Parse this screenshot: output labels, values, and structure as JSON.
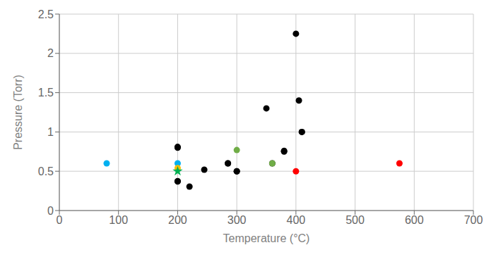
{
  "chart_data": {
    "type": "scatter",
    "xlabel": "Temperature (°C)",
    "ylabel": "Pressure (Torr)",
    "xlim": [
      0,
      700
    ],
    "ylim": [
      0,
      2.5
    ],
    "xticks": [
      0,
      100,
      200,
      300,
      400,
      500,
      600,
      700
    ],
    "yticks": [
      0,
      0.5,
      1,
      1.5,
      2,
      2.5
    ],
    "grid": true,
    "series": [
      {
        "color": "#000000",
        "marker": "circle",
        "x": [
          200,
          200,
          200,
          200,
          220,
          245,
          285,
          285,
          300,
          300,
          350,
          360,
          380,
          380,
          400,
          405,
          410,
          410
        ],
        "values": [
          0.8,
          0.81,
          0.375,
          0.37,
          0.305,
          0.52,
          0.6,
          0.6,
          0.5,
          0.5,
          1.3,
          0.6,
          0.75,
          0.76,
          2.25,
          1.4,
          1.0,
          1.0
        ]
      },
      {
        "color": "#00B0F0",
        "marker": "circle",
        "x": [
          80,
          200
        ],
        "values": [
          0.6,
          0.6
        ]
      },
      {
        "color": "#FFC000",
        "marker": "circle",
        "x": [
          200
        ],
        "values": [
          0.54
        ]
      },
      {
        "color": "#70AD47",
        "marker": "circle",
        "x": [
          300,
          360
        ],
        "values": [
          0.77,
          0.6
        ]
      },
      {
        "color": "#FF0000",
        "marker": "circle",
        "x": [
          400,
          575
        ],
        "values": [
          0.5,
          0.6
        ]
      },
      {
        "color": "#00B050",
        "marker": "star",
        "x": [
          200
        ],
        "values": [
          0.5
        ]
      }
    ]
  }
}
